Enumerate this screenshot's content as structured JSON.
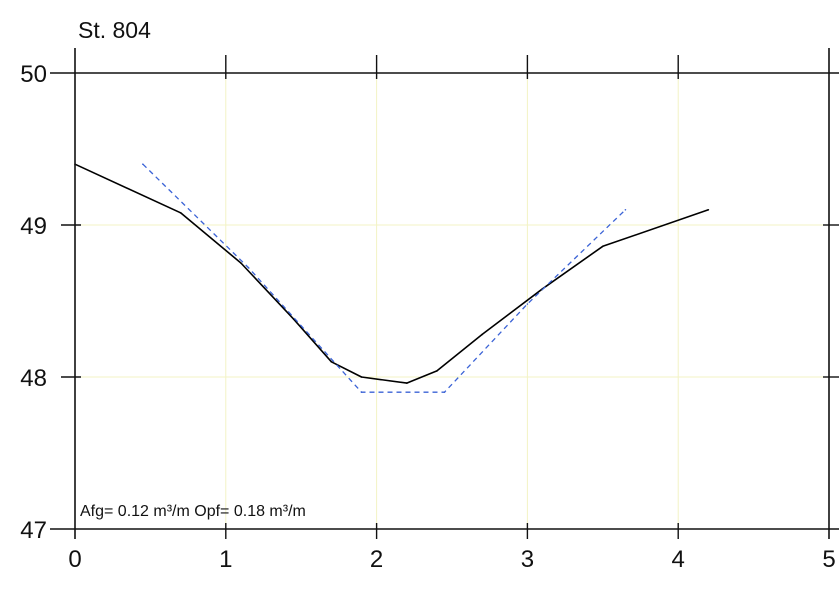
{
  "chart_data": {
    "type": "line",
    "title": "St. 804",
    "xlabel": "",
    "ylabel": "",
    "xlim": [
      0,
      5
    ],
    "ylim": [
      47,
      50
    ],
    "x_ticks": [
      0,
      1,
      2,
      3,
      4,
      5
    ],
    "y_ticks": [
      47,
      48,
      49,
      50
    ],
    "x_tick_labels": [
      "0",
      "1",
      "2",
      "3",
      "4",
      "5"
    ],
    "y_tick_labels": [
      "47",
      "48",
      "49",
      "50"
    ],
    "grid": true,
    "grid_color": "#f3f3c4",
    "series": [
      {
        "style": "solid",
        "color": "#000000",
        "x": [
          0.0,
          0.7,
          1.1,
          1.45,
          1.7,
          1.9,
          2.2,
          2.4,
          2.7,
          3.1,
          3.5,
          4.2
        ],
        "y": [
          49.4,
          49.08,
          48.75,
          48.38,
          48.1,
          48.0,
          47.96,
          48.04,
          48.28,
          48.58,
          48.86,
          49.1
        ]
      },
      {
        "style": "dashed",
        "color": "#3b63d6",
        "x": [
          0.45,
          1.15,
          1.9,
          2.45,
          3.0,
          3.65
        ],
        "y": [
          49.4,
          48.72,
          47.9,
          47.9,
          48.48,
          49.1
        ]
      }
    ],
    "annotations": [
      {
        "text": "Afg= 0.12 m³/m  Opf= 0.18 m³/m"
      }
    ]
  }
}
